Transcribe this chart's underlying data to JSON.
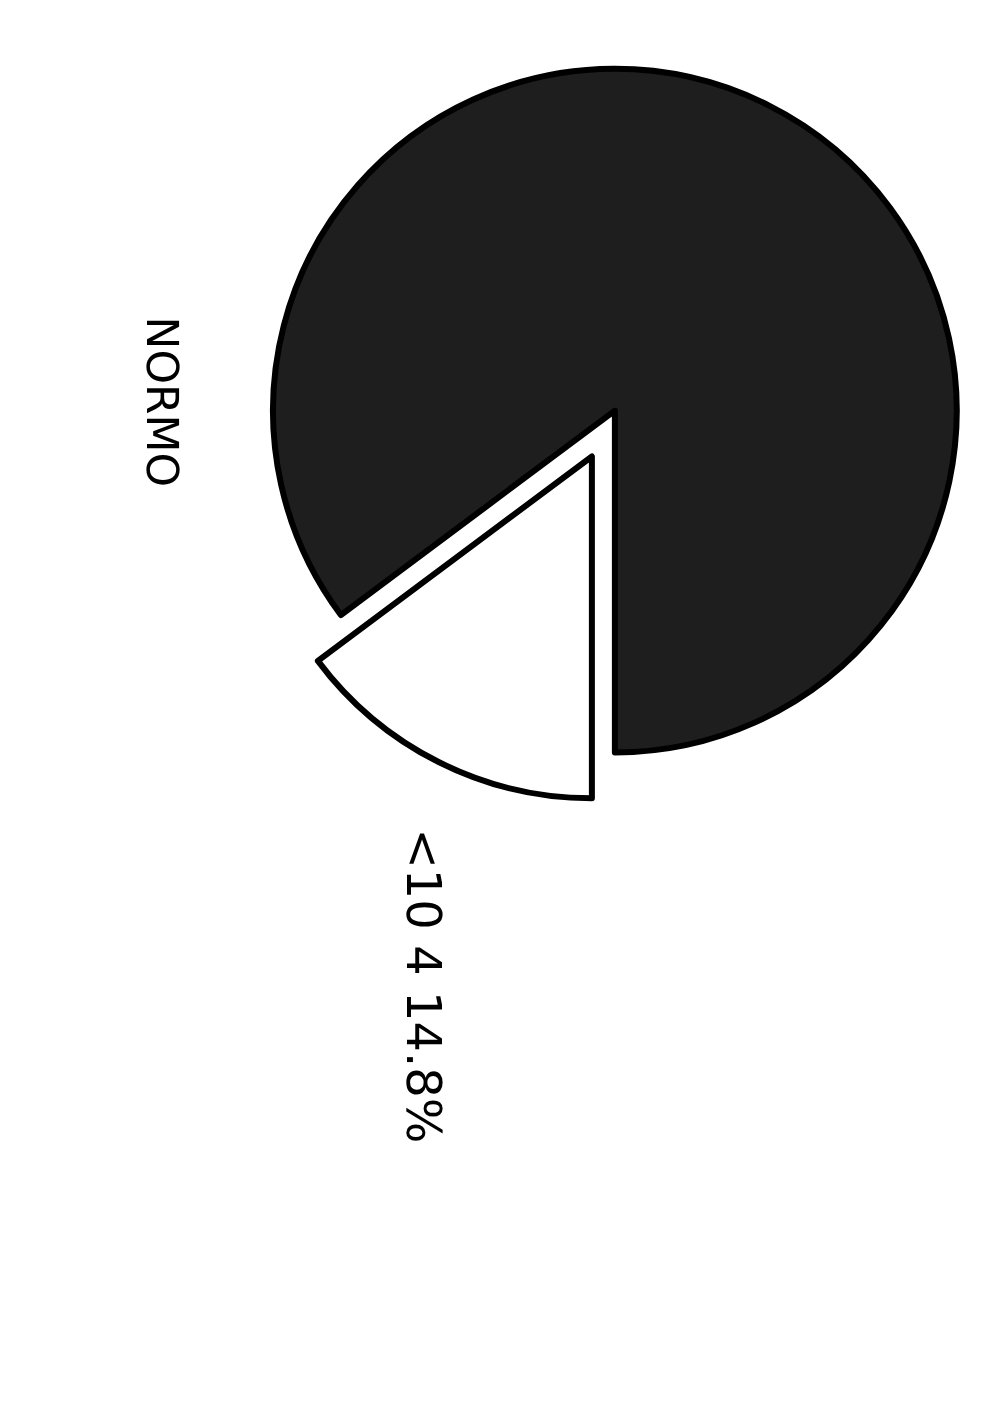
{
  "chart_data": {
    "type": "pie",
    "title": "NORMO",
    "categories": [
      "<10 4 14.8%",
      null
    ],
    "values": [
      14.8,
      85.2
    ],
    "colors": [
      "#ffffff",
      "#1e1e1e"
    ],
    "legend": false
  }
}
